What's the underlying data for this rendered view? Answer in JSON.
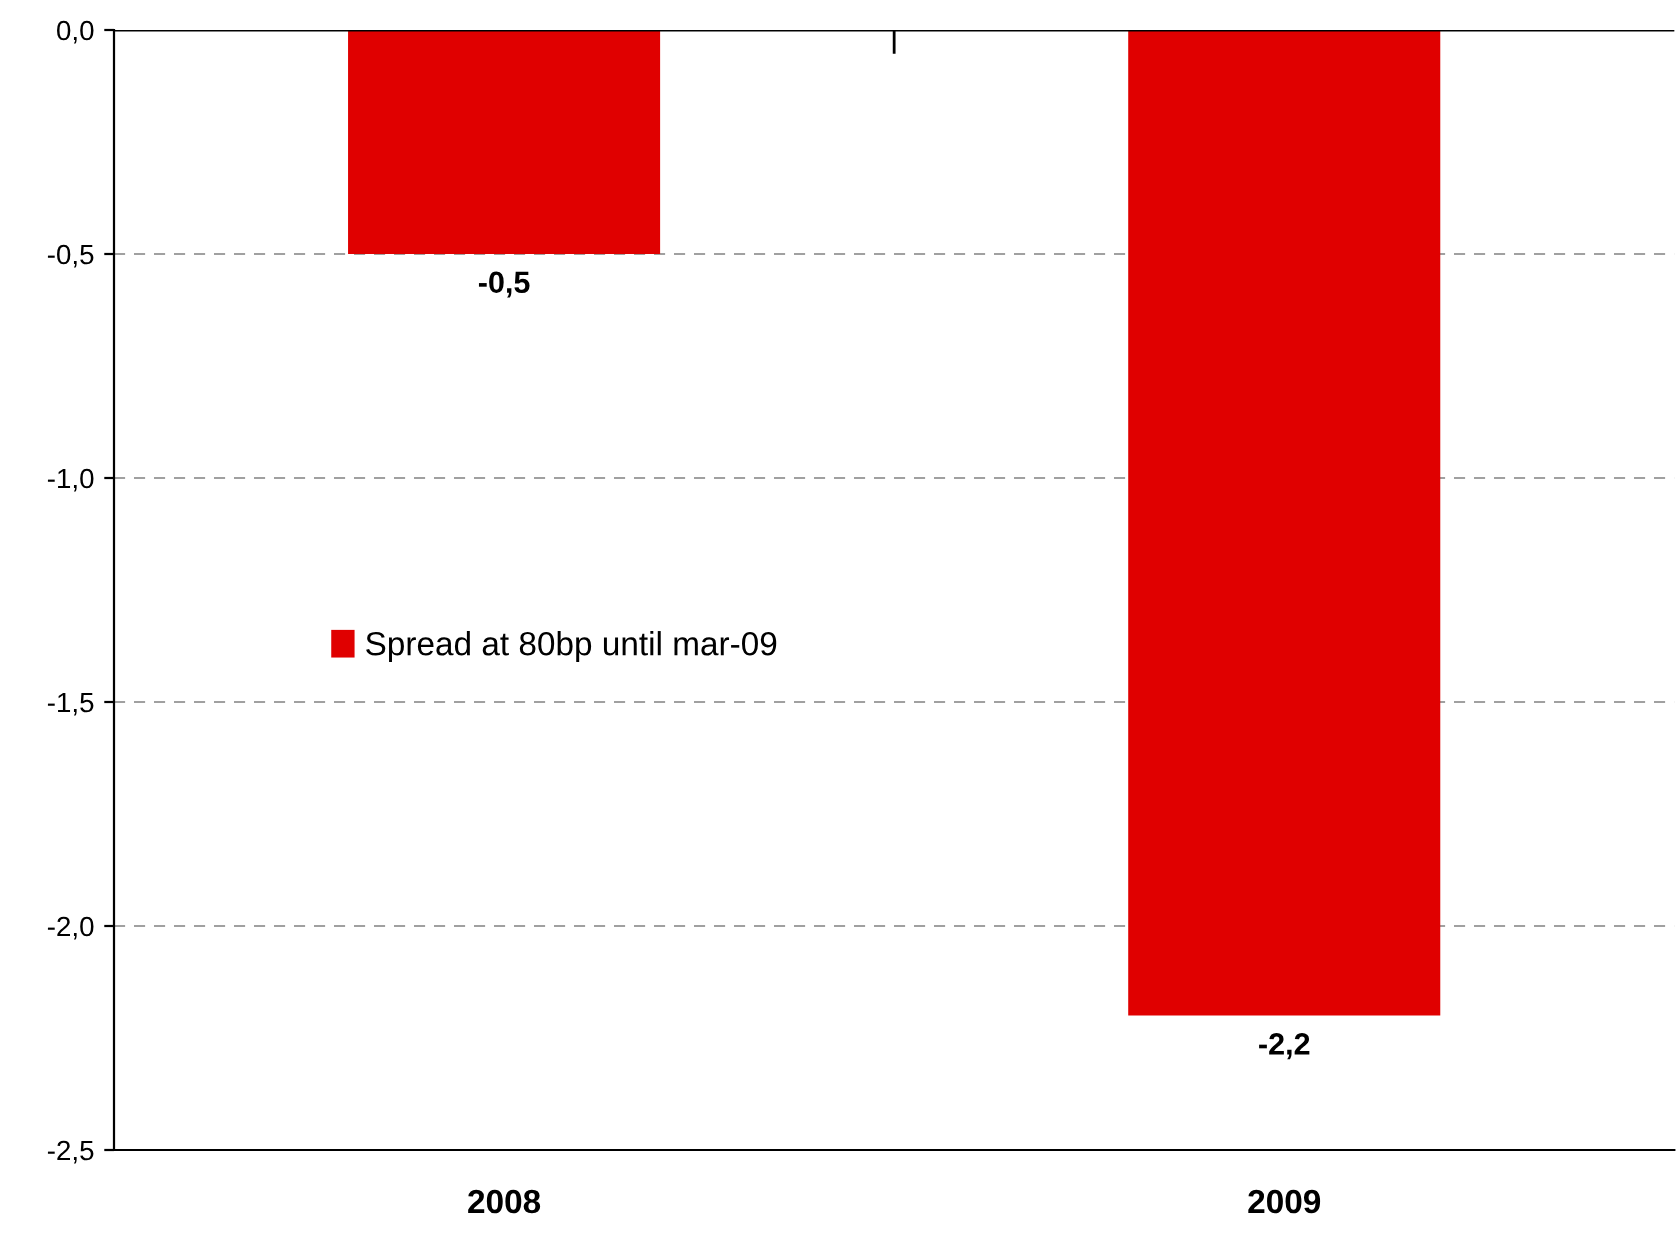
{
  "chart_data": {
    "type": "bar",
    "categories": [
      "2008",
      "2009"
    ],
    "series": [
      {
        "name": "Spread at 80bp until mar-09",
        "color": "#e00000",
        "values": [
          -0.5,
          -2.2
        ],
        "value_labels": [
          "-0,5",
          "-2,2"
        ]
      }
    ],
    "ylim": [
      -2.5,
      0
    ],
    "yticks": [
      {
        "value": -2.5,
        "label": "-2,5"
      },
      {
        "value": -2.0,
        "label": "-2,0"
      },
      {
        "value": -1.5,
        "label": "-1,5"
      },
      {
        "value": -1.0,
        "label": "-1,0"
      },
      {
        "value": -0.5,
        "label": "-0,5"
      },
      {
        "value": 0,
        "label": "0,0"
      }
    ],
    "grid": "y",
    "legend": "left"
  }
}
